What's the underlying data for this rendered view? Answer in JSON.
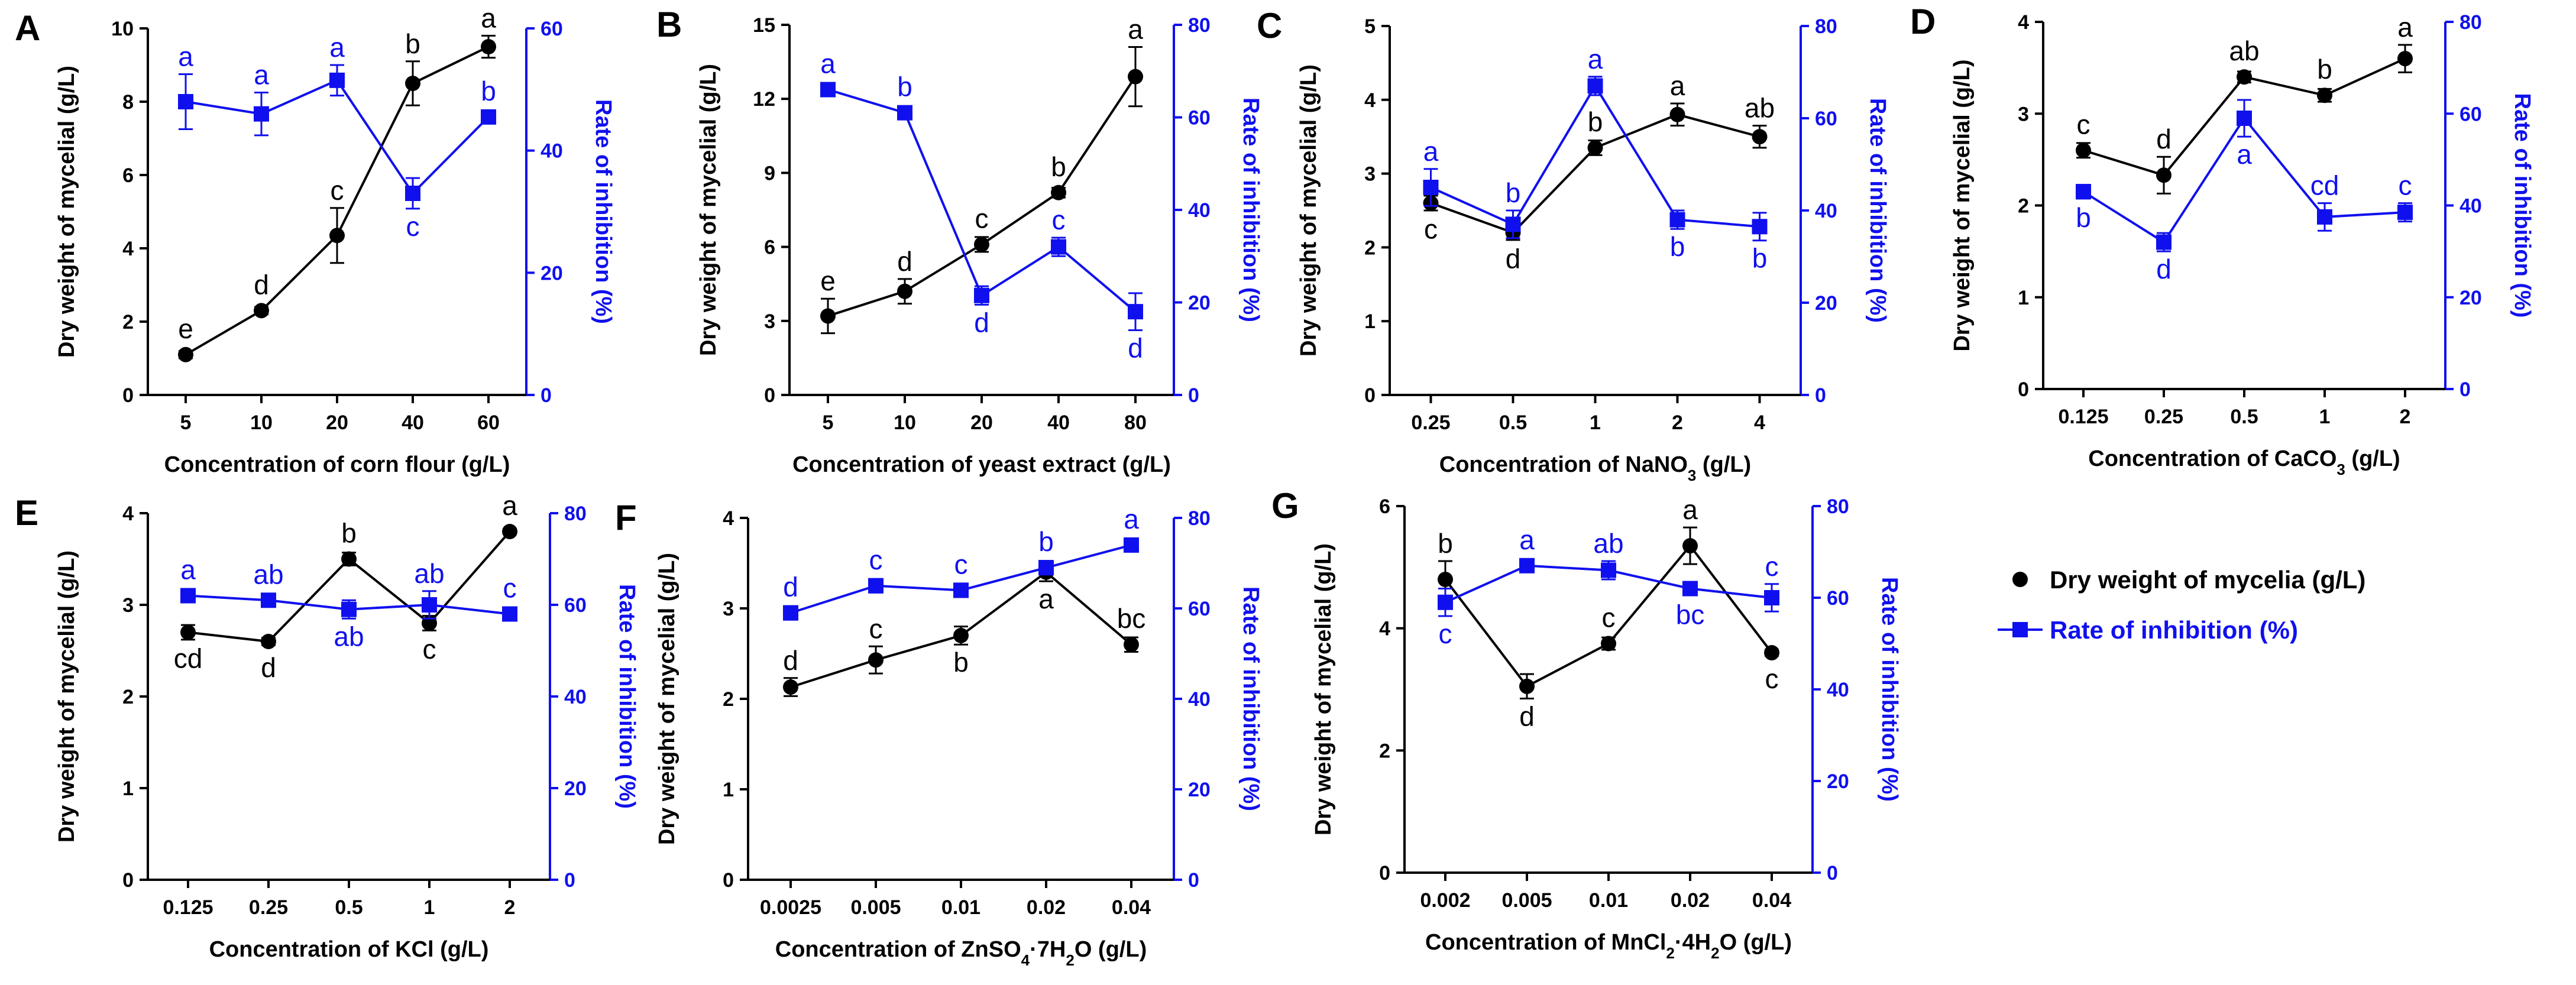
{
  "colors": {
    "weight": "#000000",
    "inhibition": "#1010ee"
  },
  "legend": {
    "weight_label": "Dry weight of mycelia (g/L)",
    "inhibition_label": "Rate of inhibition (%)"
  },
  "chart_data": [
    {
      "panel": "A",
      "type": "line",
      "xlabel": "Concentration of corn flour (g/L)",
      "ylabel_left": "Dry weight of mycelial (g/L)",
      "ylabel_right": "Rate of inhibition (%)",
      "categories": [
        "5",
        "10",
        "20",
        "40",
        "60"
      ],
      "left_ylim": [
        0,
        10
      ],
      "left_ticks": [
        "0",
        "2",
        "4",
        "6",
        "8",
        "10"
      ],
      "right_ylim": [
        0,
        60
      ],
      "right_ticks": [
        "0",
        "20",
        "40",
        "60"
      ],
      "series": [
        {
          "name": "Dry weight of mycelia (g/L)",
          "axis": "left",
          "values": [
            1.1,
            2.3,
            4.35,
            8.5,
            9.5
          ],
          "errors": [
            0.1,
            0.1,
            0.75,
            0.6,
            0.3
          ],
          "letters": [
            "e",
            "d",
            "c",
            "b",
            "a"
          ]
        },
        {
          "name": "Rate of inhibition (%)",
          "axis": "right",
          "values": [
            48,
            46,
            51.5,
            33,
            45.5
          ],
          "errors": [
            4.5,
            3.5,
            2.5,
            2.5,
            0.5
          ],
          "letters": [
            "a",
            "a",
            "a",
            "c",
            "b"
          ]
        }
      ]
    },
    {
      "panel": "B",
      "type": "line",
      "xlabel": "Concentration of yeast extract (g/L)",
      "ylabel_left": "Dry weight of mycelial (g/L)",
      "ylabel_right": "Rate of inhibition (%)",
      "categories": [
        "5",
        "10",
        "20",
        "40",
        "80"
      ],
      "left_ylim": [
        0,
        15
      ],
      "left_ticks": [
        "0",
        "3",
        "6",
        "9",
        "12",
        "15"
      ],
      "right_ylim": [
        0,
        80
      ],
      "right_ticks": [
        "0",
        "20",
        "40",
        "60",
        "80"
      ],
      "series": [
        {
          "name": "Dry weight of mycelia (g/L)",
          "axis": "left",
          "values": [
            3.2,
            4.2,
            6.1,
            8.2,
            12.9
          ],
          "errors": [
            0.7,
            0.5,
            0.3,
            0.2,
            1.2
          ],
          "letters": [
            "e",
            "d",
            "c",
            "b",
            "a"
          ]
        },
        {
          "name": "Rate of inhibition (%)",
          "axis": "right",
          "values": [
            66,
            61,
            21.5,
            32,
            18
          ],
          "errors": [
            1,
            1,
            2,
            2,
            4
          ],
          "letters": [
            "a",
            "b",
            "d",
            "c",
            "d"
          ]
        }
      ]
    },
    {
      "panel": "C",
      "type": "line",
      "xlabel": "Concentration of NaNO3 (g/L)",
      "xlabel_parts": {
        "before": "Concentration of NaNO",
        "sub": "3",
        "after": " (g/L)"
      },
      "ylabel_left": "Dry weight of mycelial (g/L)",
      "ylabel_right": "Rate of inhibition (%)",
      "categories": [
        "0.25",
        "0.5",
        "1",
        "2",
        "4"
      ],
      "left_ylim": [
        0,
        5
      ],
      "left_ticks": [
        "0",
        "1",
        "2",
        "3",
        "4",
        "5"
      ],
      "right_ylim": [
        0,
        80
      ],
      "right_ticks": [
        "0",
        "20",
        "40",
        "60",
        "80"
      ],
      "series": [
        {
          "name": "Dry weight of mycelia (g/L)",
          "axis": "left",
          "values": [
            2.6,
            2.2,
            3.35,
            3.8,
            3.5
          ],
          "errors": [
            0.1,
            0.1,
            0.1,
            0.15,
            0.15
          ],
          "letters": [
            "c",
            "d",
            "b",
            "a",
            "ab"
          ]
        },
        {
          "name": "Rate of inhibition (%)",
          "axis": "right",
          "values": [
            45,
            37,
            67,
            38,
            36.5
          ],
          "errors": [
            4,
            3,
            2,
            2,
            3
          ],
          "letters": [
            "a",
            "b",
            "a",
            "b",
            "b"
          ]
        }
      ]
    },
    {
      "panel": "D",
      "type": "line",
      "xlabel": "Concentration of CaCO3 (g/L)",
      "xlabel_parts": {
        "before": "Concentration of CaCO",
        "sub": "3",
        "after": " (g/L)"
      },
      "ylabel_left": "Dry weight of mycelial (g/L)",
      "ylabel_right": "Rate of inhibition (%)",
      "categories": [
        "0.125",
        "0.25",
        "0.5",
        "1",
        "2"
      ],
      "left_ylim": [
        0,
        4
      ],
      "left_ticks": [
        "0",
        "1",
        "2",
        "3",
        "4"
      ],
      "right_ylim": [
        0,
        80
      ],
      "right_ticks": [
        "0",
        "20",
        "40",
        "60",
        "80"
      ],
      "series": [
        {
          "name": "Dry weight of mycelia (g/L)",
          "axis": "left",
          "values": [
            2.6,
            2.33,
            3.4,
            3.2,
            3.6
          ],
          "errors": [
            0.08,
            0.2,
            0.06,
            0.07,
            0.15
          ],
          "letters": [
            "c",
            "d",
            "ab",
            "b",
            "a"
          ]
        },
        {
          "name": "Rate of inhibition (%)",
          "axis": "right",
          "values": [
            43,
            32,
            59,
            37.5,
            38.5
          ],
          "errors": [
            1.5,
            2,
            4,
            3,
            2
          ],
          "letters": [
            "b",
            "d",
            "a",
            "cd",
            "c"
          ]
        }
      ]
    },
    {
      "panel": "E",
      "type": "line",
      "xlabel": "Concentration of KCl (g/L)",
      "ylabel_left": "Dry weight of mycelial (g/L)",
      "ylabel_right": "Rate of inhibition (%)",
      "categories": [
        "0.125",
        "0.25",
        "0.5",
        "1",
        "2"
      ],
      "left_ylim": [
        0,
        4
      ],
      "left_ticks": [
        "0",
        "1",
        "2",
        "3",
        "4"
      ],
      "right_ylim": [
        0,
        80
      ],
      "right_ticks": [
        "0",
        "20",
        "40",
        "60",
        "80"
      ],
      "series": [
        {
          "name": "Dry weight of mycelia (g/L)",
          "axis": "left",
          "values": [
            2.7,
            2.6,
            3.5,
            2.8,
            3.8
          ],
          "errors": [
            0.08,
            0.04,
            0.07,
            0.08,
            0.03
          ],
          "letters": [
            "cd",
            "d",
            "b",
            "c",
            "a"
          ]
        },
        {
          "name": "Rate of inhibition (%)",
          "axis": "right",
          "values": [
            62,
            61,
            59,
            60,
            58
          ],
          "errors": [
            1,
            1,
            2,
            3,
            1
          ],
          "letters": [
            "a",
            "ab",
            "ab",
            "ab",
            "c"
          ]
        }
      ]
    },
    {
      "panel": "F",
      "type": "line",
      "xlabel": "Concentration of ZnSO4·7H2O (g/L)",
      "xlabel_parts": {
        "before": "Concentration of ZnSO",
        "sub": "4",
        "mid": "·7H",
        "sub2": "2",
        "after": "O (g/L)"
      },
      "ylabel_left": "Dry weight of mycelial (g/L)",
      "ylabel_right": "Rate of inhibition (%)",
      "categories": [
        "0.0025",
        "0.005",
        "0.01",
        "0.02",
        "0.04"
      ],
      "left_ylim": [
        0,
        4
      ],
      "left_ticks": [
        "0",
        "1",
        "2",
        "3",
        "4"
      ],
      "right_ylim": [
        0,
        80
      ],
      "right_ticks": [
        "0",
        "20",
        "40",
        "60",
        "80"
      ],
      "series": [
        {
          "name": "Dry weight of mycelia (g/L)",
          "axis": "left",
          "values": [
            2.13,
            2.43,
            2.7,
            3.4,
            2.6
          ],
          "errors": [
            0.1,
            0.15,
            0.1,
            0.1,
            0.08
          ],
          "letters": [
            "d",
            "c",
            "b",
            "a",
            "bc"
          ]
        },
        {
          "name": "Rate of inhibition (%)",
          "axis": "right",
          "values": [
            59,
            65,
            64,
            69,
            74
          ],
          "errors": [
            1.5,
            1.5,
            1.5,
            1.5,
            0.5
          ],
          "letters": [
            "d",
            "c",
            "c",
            "b",
            "a"
          ]
        }
      ]
    },
    {
      "panel": "G",
      "type": "line",
      "xlabel": "Concentration of MnCl2·4H2O (g/L)",
      "xlabel_parts": {
        "before": "Concentration of MnCl",
        "sub": "2",
        "mid": "·4H",
        "sub2": "2",
        "after": "O (g/L)"
      },
      "ylabel_left": "Dry weight of mycelial (g/L)",
      "ylabel_right": "Rate of inhibition (%)",
      "categories": [
        "0.002",
        "0.005",
        "0.01",
        "0.02",
        "0.04"
      ],
      "left_ylim": [
        0,
        6
      ],
      "left_ticks": [
        "0",
        "2",
        "4",
        "6"
      ],
      "right_ylim": [
        0,
        80
      ],
      "right_ticks": [
        "0",
        "20",
        "40",
        "60",
        "80"
      ],
      "series": [
        {
          "name": "Dry weight of mycelia (g/L)",
          "axis": "left",
          "values": [
            4.8,
            3.05,
            3.75,
            5.35,
            3.6
          ],
          "errors": [
            0.3,
            0.2,
            0.1,
            0.3,
            0.05
          ],
          "letters": [
            "b",
            "d",
            "c",
            "a",
            "c"
          ]
        },
        {
          "name": "Rate of inhibition (%)",
          "axis": "right",
          "values": [
            59,
            67,
            66,
            62,
            60
          ],
          "errors": [
            3,
            1,
            2,
            1,
            3
          ],
          "letters": [
            "c",
            "a",
            "ab",
            "bc",
            "c"
          ]
        }
      ]
    }
  ]
}
